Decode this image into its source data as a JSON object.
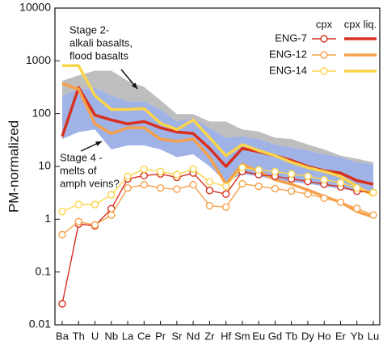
{
  "chart_data": {
    "type": "spider",
    "y_label": "PM-normalized",
    "log_y": true,
    "ylim": [
      0.01,
      10000
    ],
    "yticks": [
      0.01,
      0.1,
      1,
      10,
      100,
      1000,
      10000
    ],
    "categories": [
      "Ba",
      "Th",
      "U",
      "Nb",
      "La",
      "Ce",
      "Pr",
      "Sr",
      "Nd",
      "Zr",
      "Hf",
      "Sm",
      "Eu",
      "Gd",
      "Tb",
      "Dy",
      "Ho",
      "Er",
      "Yb",
      "Lu"
    ],
    "bands": [
      {
        "color": "#b3b3b3",
        "upper": [
          420,
          530,
          650,
          650,
          420,
          320,
          180,
          98,
          98,
          71,
          71,
          50,
          46,
          35,
          33,
          26,
          21,
          16,
          14,
          12
        ],
        "lower": [
          220,
          290,
          310,
          220,
          170,
          170,
          120,
          71,
          82,
          54,
          35,
          37,
          33,
          26,
          23,
          20,
          17,
          15,
          12,
          11
        ]
      },
      {
        "color": "#8fa6e3",
        "upper": [
          220,
          290,
          310,
          220,
          170,
          170,
          120,
          71,
          82,
          54,
          35,
          37,
          33,
          26,
          23,
          20,
          17,
          15,
          12,
          11
        ],
        "lower": [
          33,
          45,
          50,
          21,
          25,
          25,
          21,
          15,
          17,
          10,
          5.1,
          7.2,
          6.5,
          5.6,
          5.1,
          4.7,
          4.2,
          3.8,
          3.4,
          3.2
        ]
      }
    ],
    "legend": {
      "headers": [
        "cpx",
        "cpx liq."
      ]
    },
    "series": [
      {
        "name": "ENG-7",
        "color": "#d7301f",
        "cpx": [
          0.025,
          0.81,
          0.75,
          1.58,
          5.8,
          6.7,
          7.2,
          6.2,
          7.5,
          3.5,
          3.0,
          8.0,
          7.0,
          6.5,
          5.8,
          5.2,
          4.6,
          4.1,
          3.4,
          3.2
        ],
        "liq": [
          37,
          310,
          94,
          76,
          64,
          71,
          54,
          45,
          42,
          22,
          10,
          22,
          19,
          16,
          13,
          10,
          8.3,
          7.5,
          5.4,
          4.6
        ]
      },
      {
        "name": "ENG-12",
        "color": "#f5a04a",
        "cpx": [
          0.51,
          0.9,
          0.78,
          1.2,
          3.9,
          4.5,
          3.9,
          3.7,
          4.5,
          1.8,
          1.7,
          4.7,
          4.2,
          3.8,
          3.4,
          3.0,
          2.5,
          2.1,
          1.6,
          1.2
        ],
        "liq": [
          370,
          290,
          64,
          42,
          54,
          54,
          33,
          30,
          33,
          15,
          4.6,
          11,
          8.0,
          5.6,
          4.6,
          3.6,
          2.7,
          2.1,
          1.4,
          1.1
        ]
      },
      {
        "name": "ENG-14",
        "color": "#fbd44a",
        "cpx": [
          1.4,
          1.9,
          1.9,
          2.9,
          6.5,
          8.9,
          8.0,
          7.0,
          8.9,
          5.1,
          4.2,
          9.5,
          8.6,
          8.0,
          7.2,
          6.5,
          5.6,
          4.9,
          3.9,
          3.2
        ],
        "liq": [
          810,
          810,
          220,
          120,
          120,
          125,
          66,
          50,
          76,
          35,
          16,
          26,
          20,
          16,
          12,
          9.5,
          8.0,
          6.5,
          4.2,
          2.8
        ]
      }
    ],
    "annotations": [
      {
        "lines": [
          "Stage 2-",
          "alkali basalts,",
          "flood basalts"
        ]
      },
      {
        "lines": [
          "Stage 4 -",
          "melts of",
          "amph veins?"
        ]
      }
    ]
  }
}
